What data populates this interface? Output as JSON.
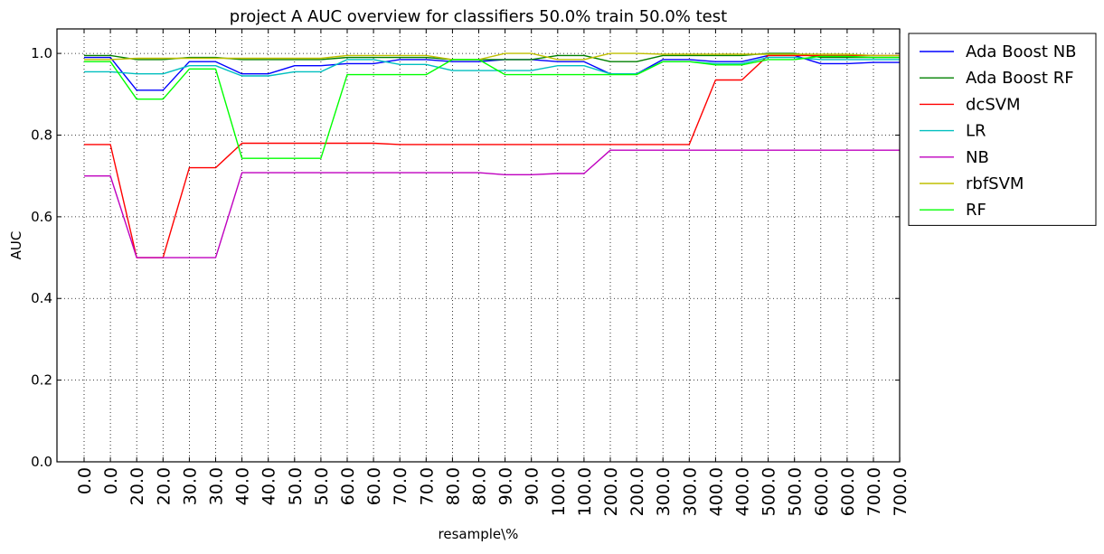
{
  "chart_data": {
    "type": "line",
    "title": "project A AUC overview for classifiers 50.0% train 50.0% test",
    "xlabel": "resample\\%",
    "ylabel": "AUC",
    "ylim": [
      0.0,
      1.06
    ],
    "yticks": [
      "0.0",
      "0.2",
      "0.4",
      "0.6",
      "0.8",
      "1.0"
    ],
    "grid": true,
    "legend_position": "outside-right-top",
    "categories": [
      "0.0",
      "0.0",
      "20.0",
      "20.0",
      "30.0",
      "30.0",
      "40.0",
      "40.0",
      "50.0",
      "50.0",
      "60.0",
      "60.0",
      "70.0",
      "70.0",
      "80.0",
      "80.0",
      "90.0",
      "90.0",
      "100.0",
      "100.0",
      "200.0",
      "200.0",
      "300.0",
      "300.0",
      "400.0",
      "400.0",
      "500.0",
      "500.0",
      "600.0",
      "600.0",
      "700.0",
      "700.0"
    ],
    "series": [
      {
        "name": "Ada Boost NB",
        "color": "#0000ff",
        "values": [
          0.99,
          0.99,
          0.91,
          0.91,
          0.98,
          0.98,
          0.95,
          0.95,
          0.97,
          0.97,
          0.975,
          0.975,
          0.985,
          0.985,
          0.98,
          0.98,
          0.985,
          0.985,
          0.98,
          0.98,
          0.95,
          0.95,
          0.985,
          0.985,
          0.98,
          0.98,
          0.995,
          0.995,
          0.975,
          0.975,
          0.978,
          0.978
        ]
      },
      {
        "name": "Ada Boost RF",
        "color": "#008000",
        "values": [
          0.995,
          0.995,
          0.985,
          0.985,
          0.99,
          0.99,
          0.985,
          0.985,
          0.985,
          0.985,
          0.99,
          0.99,
          0.99,
          0.99,
          0.985,
          0.985,
          0.985,
          0.985,
          0.995,
          0.995,
          0.98,
          0.98,
          0.995,
          0.995,
          0.995,
          0.995,
          1.0,
          1.0,
          0.99,
          0.99,
          0.99,
          0.99
        ]
      },
      {
        "name": "dcSVM",
        "color": "#ff0000",
        "values": [
          0.777,
          0.777,
          0.5,
          0.5,
          0.72,
          0.72,
          0.78,
          0.78,
          0.78,
          0.78,
          0.78,
          0.78,
          0.777,
          0.777,
          0.777,
          0.777,
          0.777,
          0.777,
          0.777,
          0.777,
          0.777,
          0.777,
          0.777,
          0.777,
          0.935,
          0.935,
          0.995,
          0.995,
          0.995,
          0.995,
          0.995,
          0.995
        ]
      },
      {
        "name": "LR",
        "color": "#00bfbf",
        "values": [
          0.955,
          0.955,
          0.95,
          0.95,
          0.97,
          0.97,
          0.945,
          0.945,
          0.955,
          0.955,
          0.985,
          0.985,
          0.973,
          0.973,
          0.958,
          0.958,
          0.958,
          0.958,
          0.97,
          0.97,
          0.95,
          0.95,
          0.98,
          0.98,
          0.975,
          0.975,
          0.99,
          0.99,
          0.985,
          0.985,
          0.985,
          0.985
        ]
      },
      {
        "name": "NB",
        "color": "#bf00bf",
        "values": [
          0.7,
          0.7,
          0.5,
          0.5,
          0.5,
          0.5,
          0.708,
          0.708,
          0.708,
          0.708,
          0.708,
          0.708,
          0.708,
          0.708,
          0.708,
          0.708,
          0.703,
          0.703,
          0.706,
          0.706,
          0.763,
          0.763,
          0.763,
          0.763,
          0.763,
          0.763,
          0.763,
          0.763,
          0.763,
          0.763,
          0.763,
          0.763
        ]
      },
      {
        "name": "rbfSVM",
        "color": "#bfbf00",
        "values": [
          0.985,
          0.985,
          0.988,
          0.988,
          0.988,
          0.988,
          0.988,
          0.988,
          0.988,
          0.988,
          0.995,
          0.995,
          0.995,
          0.995,
          0.985,
          0.985,
          1.0,
          1.0,
          0.985,
          0.985,
          1.0,
          1.0,
          0.998,
          0.998,
          0.998,
          0.998,
          0.998,
          0.998,
          0.998,
          0.998,
          0.995,
          0.995
        ]
      },
      {
        "name": "RF",
        "color": "#00ff00",
        "values": [
          0.98,
          0.98,
          0.888,
          0.888,
          0.962,
          0.962,
          0.743,
          0.743,
          0.743,
          0.743,
          0.948,
          0.948,
          0.948,
          0.948,
          0.985,
          0.985,
          0.948,
          0.948,
          0.948,
          0.948,
          0.948,
          0.948,
          0.98,
          0.98,
          0.972,
          0.972,
          0.985,
          0.985,
          0.993,
          0.993,
          0.99,
          0.99
        ]
      }
    ]
  }
}
